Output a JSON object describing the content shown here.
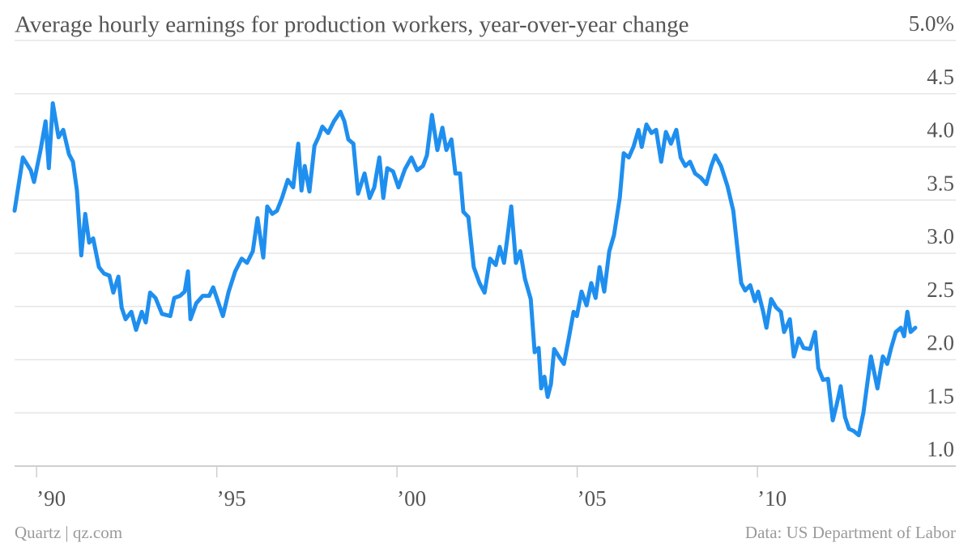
{
  "chart_data": {
    "type": "line",
    "title": "Average hourly earnings for production workers, year-over-year change",
    "source_left": "Quartz | qz.com",
    "source_right": "Data: US Department of Labor",
    "xlim": [
      1989.39,
      2014.38
    ],
    "xticks": [
      {
        "value": 1990,
        "label": "’90"
      },
      {
        "value": 1995,
        "label": "’95"
      },
      {
        "value": 2000,
        "label": "’00"
      },
      {
        "value": 2005,
        "label": "’05"
      },
      {
        "value": 2010,
        "label": "’10"
      }
    ],
    "ylim": [
      1,
      5
    ],
    "yticks": [
      {
        "value": 1,
        "label": "1.0"
      },
      {
        "value": 1.5,
        "label": "1.5"
      },
      {
        "value": 2,
        "label": "2.0"
      },
      {
        "value": 2.5,
        "label": "2.5"
      },
      {
        "value": 3,
        "label": "3.0"
      },
      {
        "value": 3.5,
        "label": "3.5"
      },
      {
        "value": 4,
        "label": "4.0"
      },
      {
        "value": 4.5,
        "label": "4.5"
      },
      {
        "value": 5,
        "label": "5.0%"
      }
    ],
    "grid": true,
    "series": [
      {
        "color": "#1f8fef",
        "x": [
          1989.39,
          1989.62,
          1989.84,
          1989.93,
          1990.11,
          1990.25,
          1990.34,
          1990.45,
          1990.61,
          1990.74,
          1990.9,
          1991.01,
          1991.12,
          1991.24,
          1991.35,
          1991.46,
          1991.57,
          1991.73,
          1991.87,
          1992.02,
          1992.13,
          1992.27,
          1992.36,
          1992.47,
          1992.63,
          1992.76,
          1992.92,
          1993.03,
          1993.15,
          1993.3,
          1993.48,
          1993.71,
          1993.82,
          1993.98,
          1994.11,
          1994.2,
          1994.27,
          1994.43,
          1994.61,
          1994.79,
          1994.9,
          1995.17,
          1995.33,
          1995.51,
          1995.69,
          1995.84,
          1996.0,
          1996.13,
          1996.29,
          1996.4,
          1996.54,
          1996.67,
          1996.81,
          1996.97,
          1997.12,
          1997.26,
          1997.35,
          1997.44,
          1997.57,
          1997.71,
          1997.82,
          1997.93,
          1998.09,
          1998.25,
          1998.43,
          1998.54,
          1998.65,
          1998.79,
          1998.92,
          1999.1,
          1999.24,
          1999.37,
          1999.51,
          1999.62,
          1999.73,
          1999.89,
          2000.04,
          2000.22,
          2000.4,
          2000.56,
          2000.72,
          2000.83,
          2000.97,
          2001.12,
          2001.26,
          2001.37,
          2001.51,
          2001.62,
          2001.75,
          2001.84,
          2001.98,
          2002.13,
          2002.29,
          2002.43,
          2002.58,
          2002.74,
          2002.85,
          2002.97,
          2003.06,
          2003.17,
          2003.3,
          2003.42,
          2003.55,
          2003.71,
          2003.82,
          2003.93,
          2004.0,
          2004.09,
          2004.18,
          2004.27,
          2004.36,
          2004.49,
          2004.63,
          2004.76,
          2004.9,
          2004.99,
          2005.12,
          2005.26,
          2005.39,
          2005.51,
          2005.62,
          2005.75,
          2005.89,
          2006.02,
          2006.18,
          2006.29,
          2006.43,
          2006.56,
          2006.7,
          2006.79,
          2006.92,
          2007.06,
          2007.19,
          2007.33,
          2007.46,
          2007.6,
          2007.75,
          2007.87,
          2008.0,
          2008.13,
          2008.27,
          2008.43,
          2008.58,
          2008.72,
          2008.83,
          2008.99,
          2009.17,
          2009.33,
          2009.44,
          2009.55,
          2009.66,
          2009.8,
          2009.93,
          2010.02,
          2010.16,
          2010.25,
          2010.38,
          2010.52,
          2010.65,
          2010.74,
          2010.9,
          2011.01,
          2011.15,
          2011.28,
          2011.46,
          2011.6,
          2011.69,
          2011.82,
          2011.96,
          2012.09,
          2012.2,
          2012.31,
          2012.43,
          2012.54,
          2012.67,
          2012.81,
          2012.94,
          2013.03,
          2013.15,
          2013.33,
          2013.48,
          2013.6,
          2013.71,
          2013.84,
          2013.98,
          2014.07,
          2014.16,
          2014.25,
          2014.38
        ],
        "values": [
          3.4,
          3.9,
          3.78,
          3.67,
          3.97,
          4.24,
          3.8,
          4.41,
          4.09,
          4.16,
          3.93,
          3.86,
          3.59,
          2.98,
          3.37,
          3.1,
          3.14,
          2.87,
          2.81,
          2.79,
          2.63,
          2.78,
          2.49,
          2.38,
          2.45,
          2.28,
          2.45,
          2.35,
          2.63,
          2.58,
          2.43,
          2.41,
          2.58,
          2.6,
          2.64,
          2.83,
          2.38,
          2.53,
          2.6,
          2.6,
          2.68,
          2.41,
          2.64,
          2.83,
          2.95,
          2.91,
          3.02,
          3.33,
          2.96,
          3.44,
          3.37,
          3.4,
          3.52,
          3.69,
          3.62,
          4.03,
          3.59,
          3.82,
          3.58,
          4.01,
          4.09,
          4.19,
          4.13,
          4.24,
          4.33,
          4.24,
          4.07,
          4.03,
          3.56,
          3.75,
          3.52,
          3.62,
          3.9,
          3.52,
          3.8,
          3.77,
          3.62,
          3.79,
          3.9,
          3.78,
          3.82,
          3.92,
          4.3,
          3.97,
          4.18,
          3.97,
          4.07,
          3.75,
          3.75,
          3.39,
          3.34,
          2.87,
          2.72,
          2.63,
          2.95,
          2.89,
          3.06,
          2.91,
          3.14,
          3.44,
          2.91,
          3.02,
          2.76,
          2.57,
          2.07,
          2.11,
          1.73,
          1.84,
          1.65,
          1.77,
          2.1,
          2.03,
          1.96,
          2.19,
          2.45,
          2.41,
          2.64,
          2.51,
          2.72,
          2.58,
          2.87,
          2.64,
          3.02,
          3.17,
          3.52,
          3.94,
          3.9,
          4.0,
          4.16,
          4.0,
          4.21,
          4.13,
          4.16,
          3.86,
          4.14,
          4.03,
          4.16,
          3.9,
          3.82,
          3.86,
          3.75,
          3.71,
          3.65,
          3.82,
          3.92,
          3.82,
          3.63,
          3.4,
          3.06,
          2.72,
          2.65,
          2.7,
          2.55,
          2.64,
          2.45,
          2.3,
          2.57,
          2.49,
          2.45,
          2.26,
          2.38,
          2.03,
          2.2,
          2.11,
          2.1,
          2.26,
          1.92,
          1.81,
          1.82,
          1.43,
          1.58,
          1.75,
          1.46,
          1.35,
          1.33,
          1.29,
          1.5,
          1.73,
          2.03,
          1.73,
          2.03,
          1.96,
          2.11,
          2.26,
          2.3,
          2.22,
          2.45,
          2.26,
          2.3
        ]
      }
    ]
  }
}
